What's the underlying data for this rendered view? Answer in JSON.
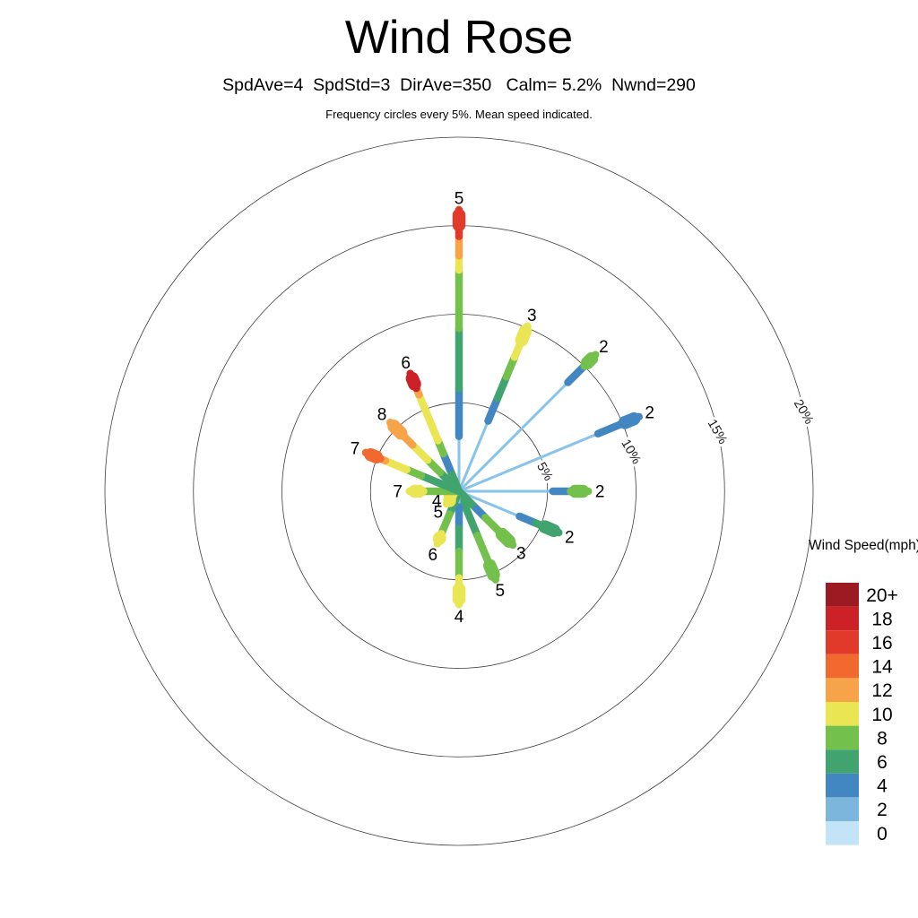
{
  "chart_data": {
    "type": "wind_rose",
    "title": "Wind Rose",
    "subtitle": "SpdAve=4  SpdStd=3  DirAve=350   Calm= 5.2%  Nwnd=290",
    "note": "Frequency circles every 5%. Mean speed indicated.",
    "frequency_ring_step_pct": 5,
    "rings": [
      {
        "pct": 5,
        "label": "5%"
      },
      {
        "pct": 10,
        "label": "10%"
      },
      {
        "pct": 15,
        "label": "15%"
      },
      {
        "pct": 20,
        "label": "20%"
      }
    ],
    "ring_label_azimuth_deg": 77,
    "ring_label_rotation_deg": 60,
    "palette": {
      "base": "#87c3ea",
      "s0": "#c3e3f7",
      "s2": "#7cb6dd",
      "s4": "#4286c2",
      "s6": "#41a46e",
      "s8": "#74c04c",
      "s10": "#e9e553",
      "s12": "#f7a34a",
      "s14": "#f2692f",
      "s16": "#e13a2b",
      "s18": "#cb2127",
      "s20": "#9c1b22"
    },
    "legend": {
      "title": "Wind Speed(mph)",
      "entries": [
        {
          "label": "20+",
          "bin": "s20"
        },
        {
          "label": "18",
          "bin": "s18"
        },
        {
          "label": "16",
          "bin": "s16"
        },
        {
          "label": "14",
          "bin": "s14"
        },
        {
          "label": "12",
          "bin": "s12"
        },
        {
          "label": "10",
          "bin": "s10"
        },
        {
          "label": "8",
          "bin": "s8"
        },
        {
          "label": "6",
          "bin": "s6"
        },
        {
          "label": "4",
          "bin": "s4"
        },
        {
          "label": "2",
          "bin": "s2"
        },
        {
          "label": "0",
          "bin": "s0"
        }
      ]
    },
    "directions": [
      {
        "name": "N",
        "angle_deg": 0,
        "mean_speed": "5",
        "segments": [
          [
            "base",
            0,
            3.1
          ],
          [
            "s4",
            3.1,
            5.8
          ],
          [
            "s6",
            5.8,
            9.2
          ],
          [
            "s8",
            9.2,
            12.5
          ],
          [
            "s10",
            12.5,
            13.3
          ],
          [
            "s12",
            13.3,
            14.4
          ],
          [
            "s16",
            14.4,
            15.9
          ]
        ]
      },
      {
        "name": "NNE",
        "angle_deg": 22.5,
        "mean_speed": "3",
        "segments": [
          [
            "base",
            0,
            4.3
          ],
          [
            "s4",
            4.3,
            5.7
          ],
          [
            "s6",
            5.7,
            7.0
          ],
          [
            "s8",
            7.0,
            8.2
          ],
          [
            "s10",
            8.2,
            10.1
          ]
        ]
      },
      {
        "name": "NE",
        "angle_deg": 45,
        "mean_speed": "2",
        "segments": [
          [
            "base",
            0,
            8.7
          ],
          [
            "s4",
            8.7,
            10.0
          ],
          [
            "s8",
            10.0,
            10.9
          ]
        ]
      },
      {
        "name": "ENE",
        "angle_deg": 67.5,
        "mean_speed": "2",
        "segments": [
          [
            "base",
            0,
            8.5
          ],
          [
            "s4",
            8.5,
            11.0
          ]
        ]
      },
      {
        "name": "E",
        "angle_deg": 90,
        "mean_speed": "2",
        "segments": [
          [
            "base",
            0,
            5.3
          ],
          [
            "s4",
            5.3,
            6.3
          ],
          [
            "s8",
            6.3,
            7.3
          ]
        ]
      },
      {
        "name": "ESE",
        "angle_deg": 112.5,
        "mean_speed": "2",
        "segments": [
          [
            "base",
            0,
            3.7
          ],
          [
            "s4",
            3.7,
            4.7
          ],
          [
            "s6",
            4.7,
            6.1
          ]
        ]
      },
      {
        "name": "SE",
        "angle_deg": 135,
        "mean_speed": "3",
        "segments": [
          [
            "s6",
            0,
            1.4
          ],
          [
            "s4",
            1.4,
            2.1
          ],
          [
            "s8",
            2.1,
            4.3
          ]
        ]
      },
      {
        "name": "SSE",
        "angle_deg": 157.5,
        "mean_speed": "5",
        "segments": [
          [
            "s6",
            0,
            2.7
          ],
          [
            "s8",
            2.7,
            5.4
          ]
        ]
      },
      {
        "name": "S",
        "angle_deg": 180,
        "mean_speed": "4",
        "segments": [
          [
            "base",
            0,
            0.9
          ],
          [
            "s4",
            0.9,
            2.1
          ],
          [
            "s6",
            2.1,
            3.4
          ],
          [
            "s8",
            3.4,
            4.9
          ],
          [
            "s10",
            4.9,
            6.4
          ]
        ]
      },
      {
        "name": "SSW",
        "angle_deg": 202.5,
        "mean_speed": "6",
        "segments": [
          [
            "s6",
            0,
            1.4
          ],
          [
            "s8",
            1.4,
            2.6
          ],
          [
            "s10",
            2.6,
            3.2
          ]
        ]
      },
      {
        "name": "SW",
        "angle_deg": 225,
        "mean_speed": "5",
        "segments": [
          [
            "s6",
            0,
            0.5
          ],
          [
            "s10",
            0.5,
            1.0
          ]
        ]
      },
      {
        "name": "WSW",
        "angle_deg": 247.5,
        "mean_speed": "4",
        "segments": [
          [
            "s8",
            0,
            0.3
          ],
          [
            "s10",
            0.3,
            0.7
          ]
        ]
      },
      {
        "name": "W",
        "angle_deg": 270,
        "mean_speed": "7",
        "segments": [
          [
            "s8",
            0,
            2.0
          ],
          [
            "s10",
            2.0,
            2.8
          ]
        ]
      },
      {
        "name": "WNW",
        "angle_deg": 292.5,
        "mean_speed": "7",
        "segments": [
          [
            "s6",
            0,
            2.3
          ],
          [
            "s8",
            2.3,
            3.2
          ],
          [
            "s10",
            3.2,
            4.5
          ],
          [
            "s12",
            4.5,
            4.8
          ],
          [
            "s14",
            4.8,
            5.7
          ]
        ]
      },
      {
        "name": "NW",
        "angle_deg": 315,
        "mean_speed": "8",
        "segments": [
          [
            "s6",
            0,
            1.5
          ],
          [
            "s8",
            1.5,
            2.5
          ],
          [
            "s10",
            2.5,
            3.7
          ],
          [
            "s12",
            3.7,
            5.5
          ]
        ]
      },
      {
        "name": "NNW",
        "angle_deg": 337.5,
        "mean_speed": "6",
        "segments": [
          [
            "s6",
            0,
            1.4
          ],
          [
            "s4",
            1.4,
            2.3
          ],
          [
            "s8",
            2.3,
            3.1
          ],
          [
            "s10",
            3.1,
            5.9
          ],
          [
            "s12",
            5.9,
            6.3
          ],
          [
            "s18",
            6.3,
            7.2
          ]
        ]
      }
    ]
  }
}
